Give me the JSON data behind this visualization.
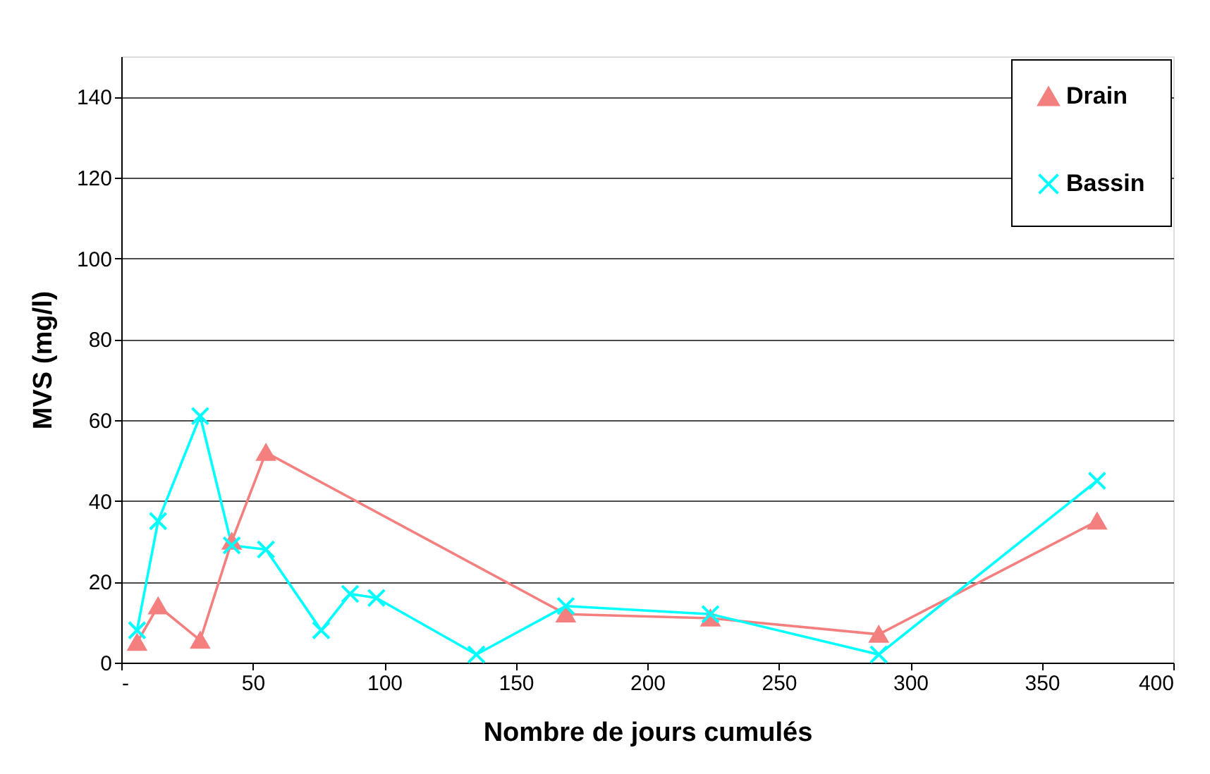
{
  "chart_data": {
    "type": "line",
    "xlabel": "Nombre de jours cumulés",
    "ylabel": "MVS (mg/l)",
    "xlim": [
      0,
      400
    ],
    "xticks": [
      {
        "value": 0,
        "label": "-"
      },
      50,
      100,
      150,
      200,
      250,
      300,
      350,
      400
    ],
    "ylim": [
      0,
      150
    ],
    "yticks": [
      0,
      20,
      40,
      60,
      80,
      100,
      120,
      140
    ],
    "grid": "y",
    "legend": "top right",
    "series": [
      {
        "name": "Drain",
        "color": "#f47f7f",
        "marker": "triangle",
        "x": [
          6,
          14,
          30,
          42,
          55,
          169,
          224,
          288,
          371
        ],
        "values": [
          5,
          14,
          5.5,
          30,
          52,
          12,
          11,
          7,
          35
        ]
      },
      {
        "name": "Bassin",
        "color": "#00ffff",
        "marker": "cross",
        "x": [
          6,
          14,
          30,
          42,
          55,
          76,
          87,
          97,
          135,
          169,
          224,
          288,
          371
        ],
        "values": [
          8,
          35,
          61,
          29,
          28,
          8,
          17,
          16,
          2,
          14,
          12,
          2,
          45
        ]
      }
    ]
  }
}
